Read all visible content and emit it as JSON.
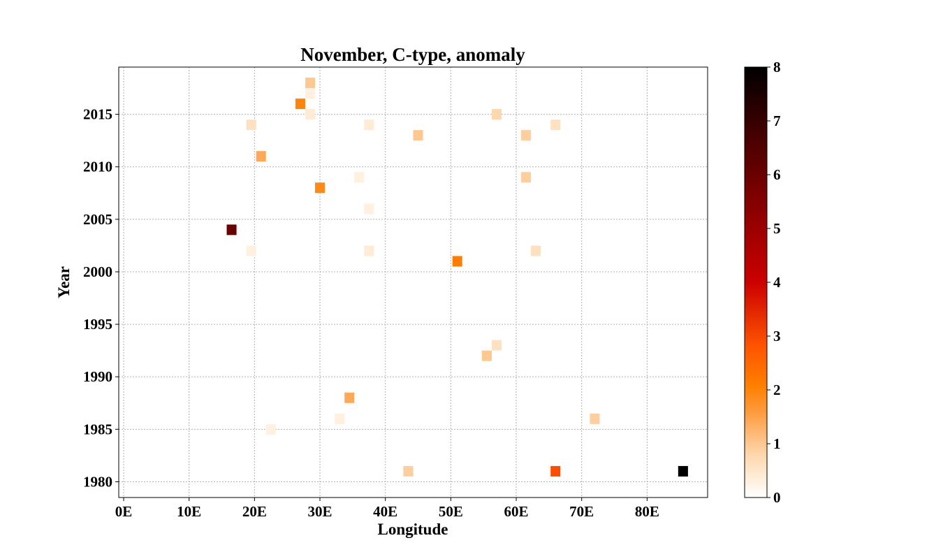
{
  "chart_data": {
    "type": "heatmap",
    "title": "November, C-type, anomaly",
    "xlabel": "Longitude",
    "ylabel": "Year",
    "xlim": [
      -0.75,
      89.25
    ],
    "ylim": [
      1978.5,
      2019.5
    ],
    "grid": true,
    "x_ticks": [
      0,
      10,
      20,
      30,
      40,
      50,
      60,
      70,
      80
    ],
    "x_tick_labels": [
      "0E",
      "10E",
      "20E",
      "30E",
      "40E",
      "50E",
      "60E",
      "70E",
      "80E"
    ],
    "y_ticks": [
      1980,
      1985,
      1990,
      1995,
      2000,
      2005,
      2010,
      2015
    ],
    "y_tick_labels": [
      "1980",
      "1985",
      "1990",
      "1995",
      "2000",
      "2005",
      "2010",
      "2015"
    ],
    "cell_width_deg": 1.5,
    "cell_height_years": 1,
    "colorbar": {
      "min": 0,
      "max": 8,
      "ticks": [
        0,
        1,
        2,
        3,
        4,
        5,
        6,
        7,
        8
      ],
      "tick_labels": [
        "0",
        "1",
        "2",
        "3",
        "4",
        "5",
        "6",
        "7",
        "8"
      ],
      "colormap_stops": [
        {
          "pos": 0.0,
          "color": "#ffffff"
        },
        {
          "pos": 0.1,
          "color": "#fed7ac"
        },
        {
          "pos": 0.2,
          "color": "#fd9a3c"
        },
        {
          "pos": 0.26,
          "color": "#ff7f00"
        },
        {
          "pos": 0.35,
          "color": "#ff5500"
        },
        {
          "pos": 0.5,
          "color": "#cc0000"
        },
        {
          "pos": 0.7,
          "color": "#7f0000"
        },
        {
          "pos": 0.85,
          "color": "#420000"
        },
        {
          "pos": 1.0,
          "color": "#000000"
        }
      ]
    },
    "cells": [
      {
        "lon": 28.5,
        "year": 2018,
        "value": 1.0
      },
      {
        "lon": 28.5,
        "year": 2017,
        "value": 0.3
      },
      {
        "lon": 27.0,
        "year": 2016,
        "value": 2.0
      },
      {
        "lon": 28.5,
        "year": 2015,
        "value": 0.4
      },
      {
        "lon": 57.0,
        "year": 2015,
        "value": 0.8
      },
      {
        "lon": 19.5,
        "year": 2014,
        "value": 0.6
      },
      {
        "lon": 37.5,
        "year": 2014,
        "value": 0.4
      },
      {
        "lon": 66.0,
        "year": 2014,
        "value": 0.6
      },
      {
        "lon": 45.0,
        "year": 2013,
        "value": 1.0
      },
      {
        "lon": 61.5,
        "year": 2013,
        "value": 0.9
      },
      {
        "lon": 21.0,
        "year": 2011,
        "value": 1.4
      },
      {
        "lon": 36.0,
        "year": 2009,
        "value": 0.3
      },
      {
        "lon": 61.5,
        "year": 2009,
        "value": 0.9
      },
      {
        "lon": 30.0,
        "year": 2008,
        "value": 1.9
      },
      {
        "lon": 37.5,
        "year": 2006,
        "value": 0.3
      },
      {
        "lon": 16.5,
        "year": 2004,
        "value": 6.0
      },
      {
        "lon": 19.5,
        "year": 2002,
        "value": 0.3
      },
      {
        "lon": 37.5,
        "year": 2002,
        "value": 0.4
      },
      {
        "lon": 63.0,
        "year": 2002,
        "value": 0.6
      },
      {
        "lon": 51.0,
        "year": 2001,
        "value": 2.1
      },
      {
        "lon": 57.0,
        "year": 1993,
        "value": 0.6
      },
      {
        "lon": 55.5,
        "year": 1992,
        "value": 1.0
      },
      {
        "lon": 34.5,
        "year": 1988,
        "value": 1.4
      },
      {
        "lon": 33.0,
        "year": 1986,
        "value": 0.3
      },
      {
        "lon": 72.0,
        "year": 1986,
        "value": 0.9
      },
      {
        "lon": 22.5,
        "year": 1985,
        "value": 0.3
      },
      {
        "lon": 43.5,
        "year": 1981,
        "value": 0.9
      },
      {
        "lon": 66.0,
        "year": 1981,
        "value": 2.9
      },
      {
        "lon": 85.5,
        "year": 1981,
        "value": 8.0
      }
    ]
  }
}
